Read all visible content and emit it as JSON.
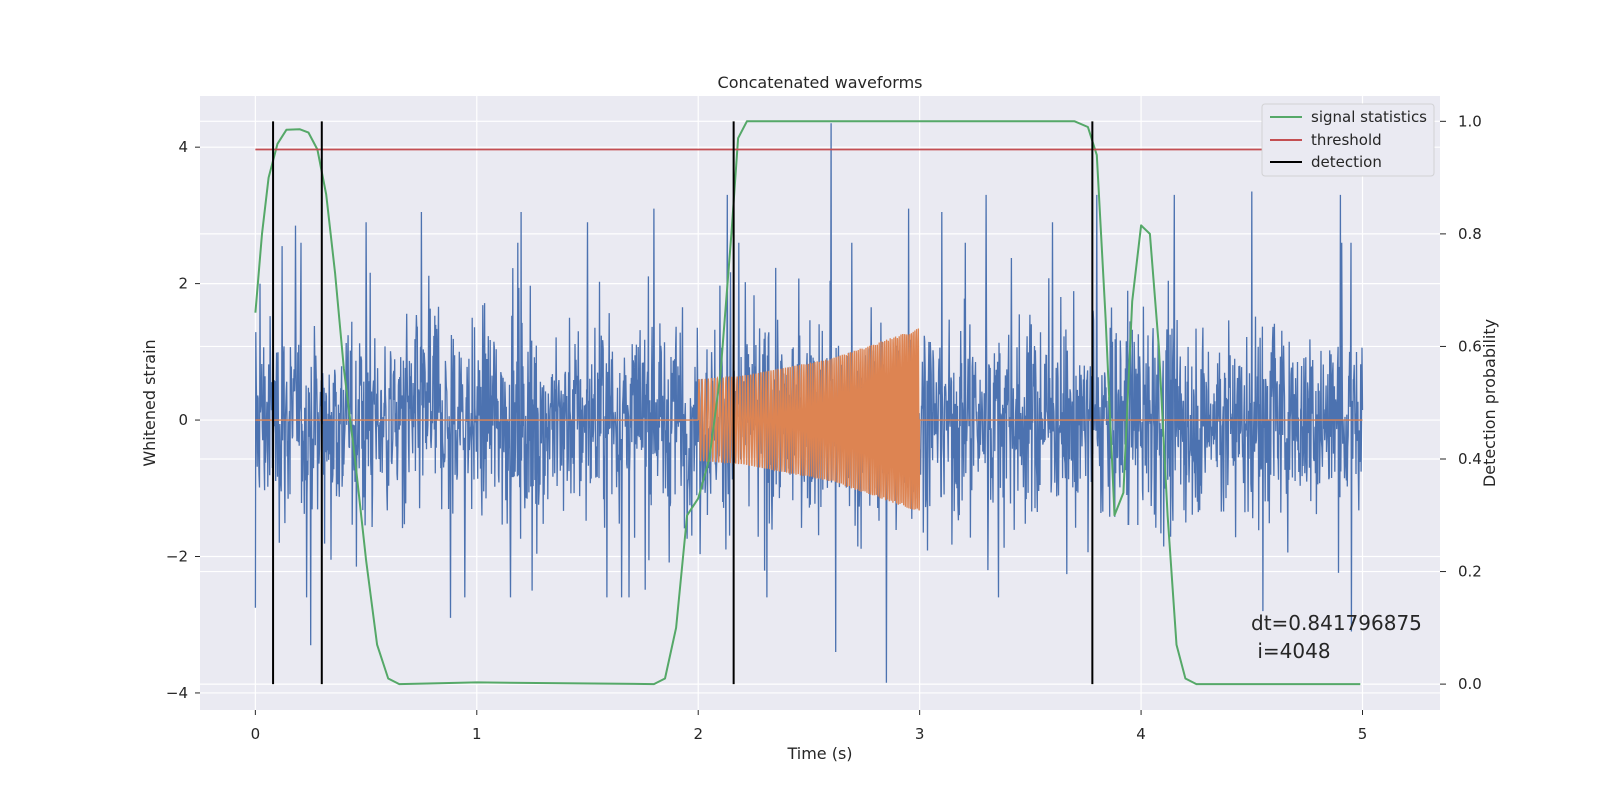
{
  "chart_data": {
    "type": "line",
    "title": "Concatenated waveforms",
    "xlabel": "Time (s)",
    "ylabel": "Whitened strain",
    "ylabel_right": "Detection probability",
    "xlim": [
      -0.25,
      5.35
    ],
    "ylim": [
      -4.25,
      4.75
    ],
    "ylim_right": [
      -0.046,
      1.045
    ],
    "xticks": [
      0,
      1,
      2,
      3,
      4,
      5
    ],
    "xtick_labels": [
      "0",
      "1",
      "2",
      "3",
      "4",
      "5"
    ],
    "yticks": [
      -4,
      -2,
      0,
      2,
      4
    ],
    "ytick_labels": [
      "−4",
      "−2",
      "0",
      "2",
      "4"
    ],
    "yticks_right": [
      0.0,
      0.2,
      0.4,
      0.6,
      0.8,
      1.0
    ],
    "ytick_right_labels": [
      "0.0",
      "0.2",
      "0.4",
      "0.6",
      "0.8",
      "1.0"
    ],
    "grid": true,
    "legend_position": "top-right",
    "colors": {
      "strain": "#4c72b0",
      "injection": "#dd8452",
      "statistics": "#55a868",
      "threshold": "#c44e52",
      "detection": "#000000",
      "plot_bg": "#eaeaf2",
      "grid": "#ffffff"
    },
    "series": [
      {
        "name": "",
        "axis": "left",
        "kind": "noise",
        "x_range": [
          0,
          5
        ],
        "typical_amplitude": 1.0,
        "peak_values": [
          [
            0.0,
            -2.75
          ],
          [
            0.02,
            2.0
          ],
          [
            0.12,
            2.55
          ],
          [
            0.18,
            2.85
          ],
          [
            0.25,
            -3.3
          ],
          [
            0.5,
            2.9
          ],
          [
            0.75,
            3.05
          ],
          [
            0.88,
            -2.9
          ],
          [
            1.2,
            3.05
          ],
          [
            1.25,
            -2.5
          ],
          [
            1.5,
            2.9
          ],
          [
            1.8,
            3.1
          ],
          [
            2.13,
            3.3
          ],
          [
            2.6,
            4.35
          ],
          [
            2.62,
            -3.4
          ],
          [
            2.85,
            -3.85
          ],
          [
            2.95,
            3.1
          ],
          [
            3.1,
            3.05
          ],
          [
            3.3,
            3.3
          ],
          [
            3.6,
            2.9
          ],
          [
            3.8,
            3.3
          ],
          [
            4.15,
            3.3
          ],
          [
            4.5,
            3.35
          ],
          [
            4.55,
            -2.8
          ],
          [
            4.9,
            3.3
          ],
          [
            4.95,
            -3.1
          ]
        ]
      },
      {
        "name": "",
        "axis": "left",
        "kind": "chirp",
        "x_range": [
          2,
          3
        ],
        "envelope": [
          [
            2.0,
            0.6
          ],
          [
            2.2,
            0.65
          ],
          [
            2.6,
            0.9
          ],
          [
            3.0,
            1.35
          ]
        ]
      },
      {
        "name": "signal statistics",
        "axis": "right",
        "x": [
          0.0,
          0.03,
          0.06,
          0.1,
          0.14,
          0.2,
          0.24,
          0.28,
          0.32,
          0.36,
          0.4,
          0.45,
          0.5,
          0.55,
          0.6,
          0.65,
          1.0,
          1.8,
          1.85,
          1.9,
          1.95,
          2.0,
          2.05,
          2.1,
          2.15,
          2.18,
          2.22,
          2.3,
          3.7,
          3.76,
          3.8,
          3.84,
          3.88,
          3.92,
          3.96,
          4.0,
          4.04,
          4.08,
          4.12,
          4.16,
          4.2,
          4.25,
          4.99
        ],
        "y": [
          0.66,
          0.8,
          0.9,
          0.96,
          0.985,
          0.986,
          0.98,
          0.95,
          0.87,
          0.73,
          0.56,
          0.4,
          0.22,
          0.07,
          0.01,
          0.0,
          0.003,
          0.0,
          0.01,
          0.1,
          0.3,
          0.33,
          0.4,
          0.55,
          0.8,
          0.97,
          1.0,
          1.0,
          1.0,
          0.99,
          0.94,
          0.65,
          0.3,
          0.34,
          0.68,
          0.815,
          0.8,
          0.6,
          0.3,
          0.07,
          0.01,
          0.0,
          0.0
        ]
      },
      {
        "name": "threshold",
        "axis": "right",
        "x": [
          0,
          5
        ],
        "y": [
          0.95,
          0.95
        ]
      }
    ],
    "detections": {
      "name": "detection",
      "x": [
        0.08,
        0.3,
        2.16,
        3.78
      ]
    },
    "annotation": {
      "lines": [
        "dt=0.841796875",
        " i=4048"
      ],
      "x": 4.5,
      "y": -2.95
    }
  }
}
